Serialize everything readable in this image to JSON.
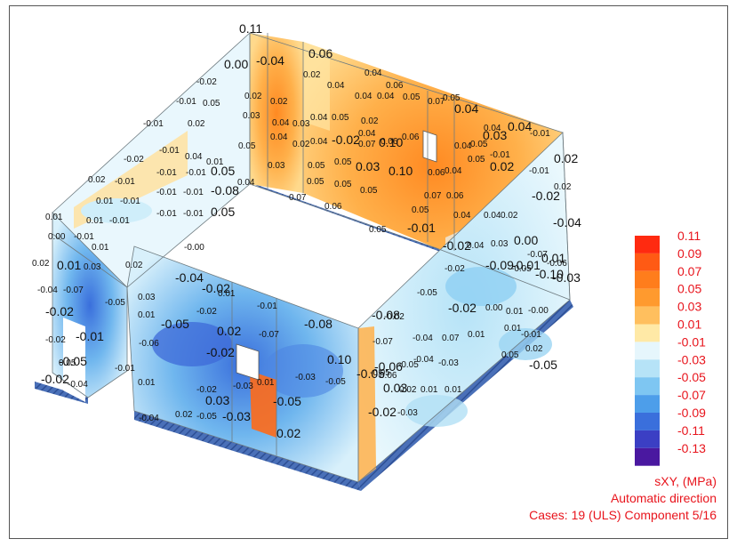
{
  "legend": {
    "swatches": [
      {
        "label": "0.11",
        "color": "#ff2a10"
      },
      {
        "label": "0.09",
        "color": "#ff5a14"
      },
      {
        "label": "0.07",
        "color": "#ff7d1c"
      },
      {
        "label": "0.05",
        "color": "#ff9a2e"
      },
      {
        "label": "0.03",
        "color": "#ffbf5e"
      },
      {
        "label": "0.01",
        "color": "#ffe9a6"
      },
      {
        "label": "-0.01",
        "color": "#e6f6fc"
      },
      {
        "label": "-0.03",
        "color": "#b6e3f7"
      },
      {
        "label": "-0.05",
        "color": "#7ec6f2"
      },
      {
        "label": "-0.07",
        "color": "#4d9eea"
      },
      {
        "label": "-0.09",
        "color": "#3a6fdc"
      },
      {
        "label": "-0.11",
        "color": "#3b3fc4"
      },
      {
        "label": "-0.13",
        "color": "#4a18a0"
      }
    ]
  },
  "info": {
    "quantity": "sXY, (MPa)",
    "direction": "Automatic direction",
    "cases": "Cases: 19 (ULS) Component 5/16"
  },
  "value_labels": [
    {
      "t": "0.11",
      "big": true
    },
    {
      "t": "0.00",
      "big": true
    },
    {
      "t": "-0.04",
      "big": true
    },
    {
      "t": "0.06",
      "big": true
    },
    {
      "t": "0.04"
    },
    {
      "t": "0.02"
    },
    {
      "t": "0.04"
    },
    {
      "t": "0.06"
    },
    {
      "t": "0.04"
    },
    {
      "t": "0.04"
    },
    {
      "t": "0.05"
    },
    {
      "t": "0.07"
    },
    {
      "t": "0.05"
    },
    {
      "t": "0.04",
      "big": true
    },
    {
      "t": "0.04"
    },
    {
      "t": "0.04",
      "big": true
    },
    {
      "t": "-0.01"
    },
    {
      "t": "-0.02"
    },
    {
      "t": "-0.01"
    },
    {
      "t": "0.05"
    },
    {
      "t": "0.02"
    },
    {
      "t": "0.02"
    },
    {
      "t": "0.03"
    },
    {
      "t": "0.04"
    },
    {
      "t": "0.03"
    },
    {
      "t": "0.04"
    },
    {
      "t": "0.05"
    },
    {
      "t": "0.02"
    },
    {
      "t": "0.04"
    },
    {
      "t": "-0.02",
      "big": true
    },
    {
      "t": "-0.01"
    },
    {
      "t": "0.02"
    },
    {
      "t": "0.05"
    },
    {
      "t": "0.04"
    },
    {
      "t": "0.02"
    },
    {
      "t": "0.04"
    },
    {
      "t": "0.06"
    },
    {
      "t": "0.07"
    },
    {
      "t": "0.10",
      "big": true
    },
    {
      "t": "0.06"
    },
    {
      "t": "0.05"
    },
    {
      "t": "0.04"
    },
    {
      "t": "0.03",
      "big": true
    },
    {
      "t": "-0.02"
    },
    {
      "t": "-0.01"
    },
    {
      "t": "0.04"
    },
    {
      "t": "0.01"
    },
    {
      "t": "0.03"
    },
    {
      "t": "0.05"
    },
    {
      "t": "0.05"
    },
    {
      "t": "0.03",
      "big": true
    },
    {
      "t": "0.10",
      "big": true
    },
    {
      "t": "0.06"
    },
    {
      "t": "0.05"
    },
    {
      "t": "-0.01"
    },
    {
      "t": "0.02",
      "big": true
    },
    {
      "t": "0.02"
    },
    {
      "t": "-0.01"
    },
    {
      "t": "-0.01"
    },
    {
      "t": "-0.01"
    },
    {
      "t": "0.05",
      "big": true
    },
    {
      "t": "0.04"
    },
    {
      "t": "0.05"
    },
    {
      "t": "0.05"
    },
    {
      "t": "0.05"
    },
    {
      "t": "0.04"
    },
    {
      "t": "0.02",
      "big": true
    },
    {
      "t": "-0.01"
    },
    {
      "t": "0.02"
    },
    {
      "t": "0.01"
    },
    {
      "t": "-0.01"
    },
    {
      "t": "-0.01"
    },
    {
      "t": "-0.01"
    },
    {
      "t": "-0.08",
      "big": true
    },
    {
      "t": "0.07"
    },
    {
      "t": "0.07"
    },
    {
      "t": "0.06"
    },
    {
      "t": "0.06"
    },
    {
      "t": "0.05"
    },
    {
      "t": "0.04"
    },
    {
      "t": "0.04"
    },
    {
      "t": "0.02"
    },
    {
      "t": "-0.02",
      "big": true
    },
    {
      "t": "0.01"
    },
    {
      "t": "0.01"
    },
    {
      "t": "-0.01"
    },
    {
      "t": "-0.01"
    },
    {
      "t": "-0.01"
    },
    {
      "t": "0.05",
      "big": true
    },
    {
      "t": "0.05"
    },
    {
      "t": "-0.01",
      "big": true
    },
    {
      "t": "-0.04",
      "big": true
    },
    {
      "t": "0.00"
    },
    {
      "t": "-0.01"
    },
    {
      "t": "-0.00"
    },
    {
      "t": "0.01"
    },
    {
      "t": "-0.02",
      "big": true
    },
    {
      "t": "0.04"
    },
    {
      "t": "0.03"
    },
    {
      "t": "0.00",
      "big": true
    },
    {
      "t": "-0.07"
    },
    {
      "t": "-0.06"
    },
    {
      "t": "0.02"
    },
    {
      "t": "0.01",
      "big": true
    },
    {
      "t": "0.03"
    },
    {
      "t": "0.02"
    },
    {
      "t": "-0.02"
    },
    {
      "t": "-0.09",
      "big": true
    },
    {
      "t": "-0.01",
      "big": true
    },
    {
      "t": "0.01",
      "big": true
    },
    {
      "t": "-0.04"
    },
    {
      "t": "-0.07"
    },
    {
      "t": "-0.05"
    },
    {
      "t": "0.03"
    },
    {
      "t": "-0.05"
    },
    {
      "t": "-0.05"
    },
    {
      "t": "-0.10",
      "big": true
    },
    {
      "t": "-0.03",
      "big": true
    },
    {
      "t": "-0.04",
      "big": true
    },
    {
      "t": "-0.02",
      "big": true
    },
    {
      "t": "0.01"
    },
    {
      "t": "-0.01"
    },
    {
      "t": "0.01"
    },
    {
      "t": "-0.02"
    },
    {
      "t": "-0.02",
      "big": true
    },
    {
      "t": "-0.05",
      "big": true
    },
    {
      "t": "0.02",
      "big": true
    },
    {
      "t": "-0.07"
    },
    {
      "t": "-0.08",
      "big": true
    },
    {
      "t": "-0.08",
      "big": true
    },
    {
      "t": "-0.02",
      "big": true
    },
    {
      "t": "0.00"
    },
    {
      "t": "0.01"
    },
    {
      "t": "-0.00"
    },
    {
      "t": "-0.02"
    },
    {
      "t": "-0.02"
    },
    {
      "t": "-0.01",
      "big": true
    },
    {
      "t": "-0.06"
    },
    {
      "t": "-0.02",
      "big": true
    },
    {
      "t": "0.10",
      "big": true
    },
    {
      "t": "-0.07"
    },
    {
      "t": "-0.04"
    },
    {
      "t": "0.07"
    },
    {
      "t": "0.01"
    },
    {
      "t": "0.01"
    },
    {
      "t": "-0.01"
    },
    {
      "t": "-0.01"
    },
    {
      "t": "-0.05",
      "big": true
    },
    {
      "t": "-0.03"
    },
    {
      "t": "-0.05"
    },
    {
      "t": "-0.05"
    },
    {
      "t": "-0.06",
      "big": true
    },
    {
      "t": "-0.04"
    },
    {
      "t": "-0.03"
    },
    {
      "t": "0.05"
    },
    {
      "t": "0.02"
    },
    {
      "t": "0.01"
    },
    {
      "t": "0.01"
    },
    {
      "t": "-0.02"
    },
    {
      "t": "-0.05",
      "big": true
    },
    {
      "t": "-0.03"
    },
    {
      "t": "-0.05"
    },
    {
      "t": "-0.05",
      "big": true
    },
    {
      "t": "0.06"
    },
    {
      "t": "0.03",
      "big": true
    },
    {
      "t": "0.02"
    },
    {
      "t": "0.01"
    },
    {
      "t": "0.01"
    },
    {
      "t": "-0.05",
      "big": true
    },
    {
      "t": "0.05"
    },
    {
      "t": "-0.04"
    },
    {
      "t": "-0.02",
      "big": true
    },
    {
      "t": "0.03",
      "big": true
    },
    {
      "t": "0.02"
    },
    {
      "t": "-0.05"
    },
    {
      "t": "-0.04"
    },
    {
      "t": "-0.03",
      "big": true
    },
    {
      "t": "0.02",
      "big": true
    },
    {
      "t": "-0.02",
      "big": true
    },
    {
      "t": "-0.03"
    }
  ]
}
